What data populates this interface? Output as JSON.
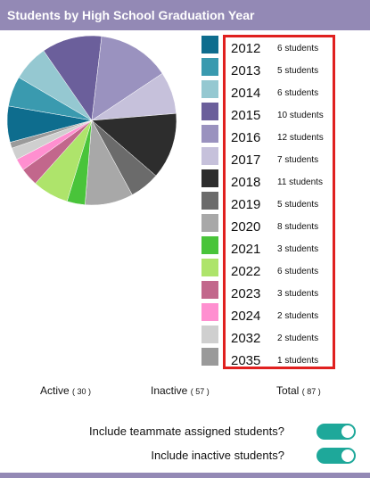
{
  "header": {
    "title": "Students by High School Graduation Year"
  },
  "legend": [
    {
      "year": "2012",
      "count": "6 students",
      "value": 6,
      "color": "#0e6d8e"
    },
    {
      "year": "2013",
      "count": "5 students",
      "value": 5,
      "color": "#3a9aaf"
    },
    {
      "year": "2014",
      "count": "6 students",
      "value": 6,
      "color": "#95c8d1"
    },
    {
      "year": "2015",
      "count": "10 students",
      "value": 10,
      "color": "#6b5f9b"
    },
    {
      "year": "2016",
      "count": "12 students",
      "value": 12,
      "color": "#9a92bf"
    },
    {
      "year": "2017",
      "count": "7 students",
      "value": 7,
      "color": "#c6c1db"
    },
    {
      "year": "2018",
      "count": "11 students",
      "value": 11,
      "color": "#2d2d2d"
    },
    {
      "year": "2019",
      "count": "5 students",
      "value": 5,
      "color": "#6b6b6b"
    },
    {
      "year": "2020",
      "count": "8 students",
      "value": 8,
      "color": "#a8a8a8"
    },
    {
      "year": "2021",
      "count": "3 students",
      "value": 3,
      "color": "#49c43a"
    },
    {
      "year": "2022",
      "count": "6 students",
      "value": 6,
      "color": "#aee46b"
    },
    {
      "year": "2023",
      "count": "3 students",
      "value": 3,
      "color": "#c2678c"
    },
    {
      "year": "2024",
      "count": "2 students",
      "value": 2,
      "color": "#ff8fd0"
    },
    {
      "year": "2032",
      "count": "2 students",
      "value": 2,
      "color": "#cfcfcf"
    },
    {
      "year": "2035",
      "count": "1 students",
      "value": 1,
      "color": "#9a9a9a"
    }
  ],
  "totals": {
    "active_label": "Active",
    "active_count": "( 30 )",
    "inactive_label": "Inactive",
    "inactive_count": "( 57 )",
    "total_label": "Total",
    "total_count": "( 87 )"
  },
  "options": {
    "teammate_label": "Include teammate assigned students?",
    "teammate_on": true,
    "inactive_label": "Include inactive students?",
    "inactive_on": true
  },
  "colors": {
    "header": "#9389b5",
    "toggle_on": "#1ea89a",
    "highlight_border": "#e0201f"
  }
}
